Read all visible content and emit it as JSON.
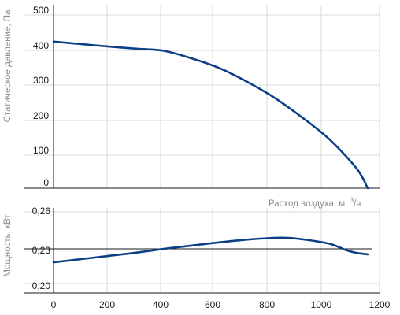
{
  "chart_data": [
    {
      "type": "line",
      "ylabel": "Статическое давление, Па",
      "xlabel": "Расход воздуха, м³/ч",
      "xlabel_main": "Расход воздуха, м",
      "xlabel_unit_sup": "3",
      "xlabel_unit_rest": "/ч",
      "xlim": [
        0,
        1200
      ],
      "ylim": [
        0,
        500
      ],
      "y_ticks": [
        "0",
        "100",
        "200",
        "300",
        "400",
        "500"
      ],
      "grid": true,
      "series": [
        {
          "color": "#0d3f86",
          "x": [
            0,
            100,
            200,
            300,
            400,
            500,
            600,
            700,
            800,
            900,
            1000,
            1100,
            1140
          ],
          "y": [
            412,
            405,
            398,
            392,
            386,
            365,
            338,
            300,
            255,
            200,
            138,
            55,
            0
          ]
        }
      ]
    },
    {
      "type": "line",
      "ylabel": "Мощность, кВт",
      "xlim": [
        0,
        1200
      ],
      "ylim": [
        0.195,
        0.265
      ],
      "y_ticks": [
        "0,20",
        "0,23",
        "0,26"
      ],
      "x_ticks": [
        "0",
        "200",
        "400",
        "600",
        "800",
        "1000",
        "1200"
      ],
      "reference_line": 0.23,
      "grid": true,
      "series": [
        {
          "color": "#0d3f86",
          "x": [
            0,
            100,
            200,
            300,
            400,
            500,
            600,
            700,
            800,
            850,
            900,
            1000,
            1060,
            1100,
            1140
          ],
          "y": [
            0.2175,
            0.2205,
            0.2235,
            0.2265,
            0.23,
            0.233,
            0.236,
            0.2385,
            0.2402,
            0.2402,
            0.239,
            0.2348,
            0.229,
            0.2262,
            0.225
          ]
        }
      ]
    }
  ]
}
